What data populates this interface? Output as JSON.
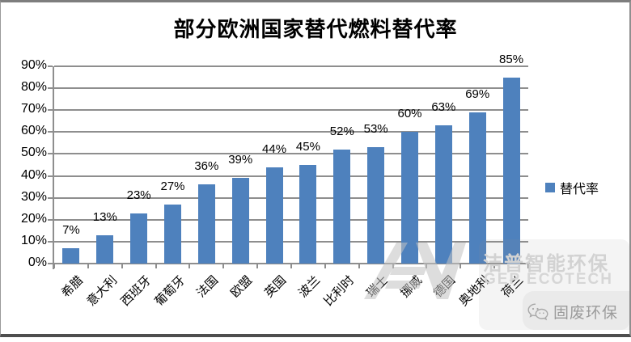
{
  "chart_data": {
    "type": "bar",
    "title": "部分欧洲国家替代燃料替代率",
    "categories": [
      "希腊",
      "意大利",
      "西班牙",
      "葡萄牙",
      "法国",
      "欧盟",
      "英国",
      "波兰",
      "比利时",
      "瑞士",
      "挪威",
      "德国",
      "奥地利",
      "荷兰"
    ],
    "series": [
      {
        "name": "替代率",
        "values": [
          7,
          13,
          23,
          27,
          36,
          39,
          44,
          45,
          52,
          53,
          60,
          63,
          69,
          85
        ]
      }
    ],
    "data_labels": [
      "7%",
      "13%",
      "23%",
      "27%",
      "36%",
      "39%",
      "44%",
      "45%",
      "52%",
      "53%",
      "60%",
      "63%",
      "69%",
      "85%"
    ],
    "y_ticks": [
      "0%",
      "10%",
      "20%",
      "30%",
      "40%",
      "50%",
      "60%",
      "70%",
      "80%",
      "90%"
    ],
    "ylim": [
      0,
      90
    ],
    "xlabel": "",
    "ylabel": "",
    "grid": true,
    "legend_position": "right",
    "bar_color": "#4E81BD",
    "gridline_color": "#8E8E8E"
  },
  "legend": {
    "label": "替代率",
    "swatch_color": "#4E81BD"
  },
  "watermark": {
    "brand_cn": "洁普智能环保",
    "brand_en": "GEP ECOTECH",
    "wechat_label": "固废环保"
  }
}
